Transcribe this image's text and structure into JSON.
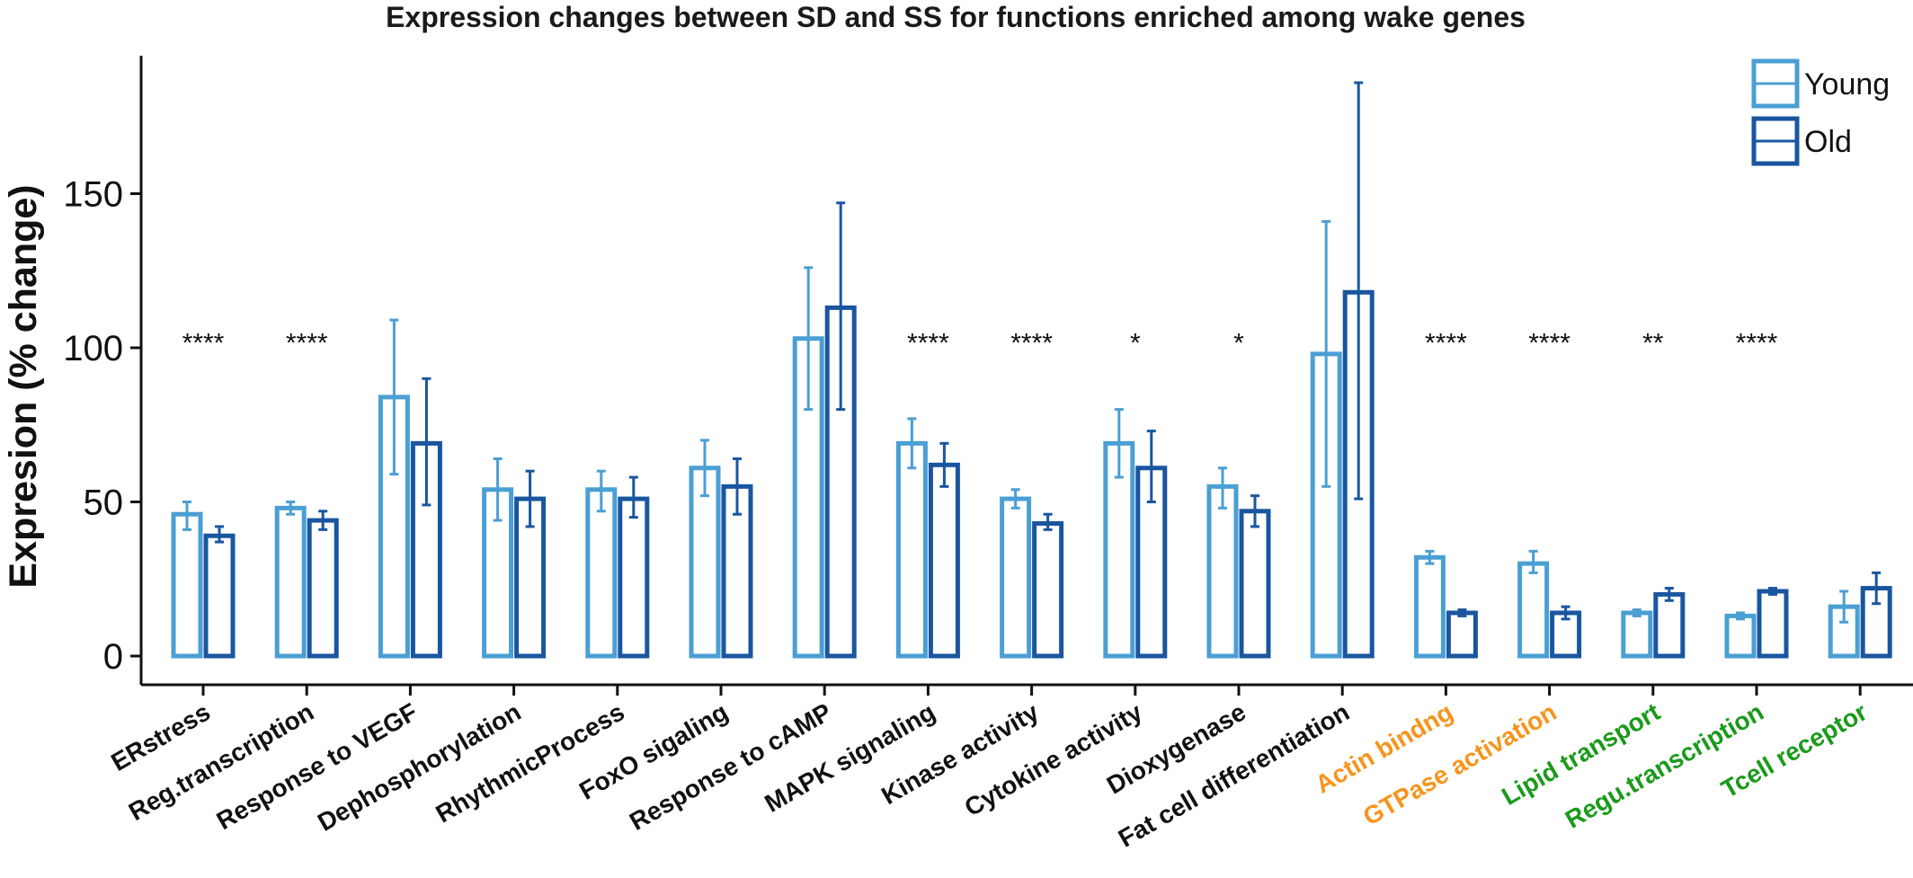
{
  "chart_data": {
    "type": "bar",
    "title": "Expression changes between SD and SS for functions enriched among wake genes",
    "xlabel": "",
    "ylabel": "Expresion (% change)",
    "ylim": [
      -10,
      193
    ],
    "yticks": [
      0,
      50,
      100,
      150
    ],
    "grid": false,
    "legend_position": "top-right",
    "categories": [
      "ERstress",
      "Reg.transcription",
      "Response to VEGF",
      "Dephosphorylation",
      "RhythmicProcess",
      "FoxO sigaling",
      "Response to cAMP",
      "MAPK signaling",
      "Kinase activity",
      "Cytokine activity",
      "Dioxygenase",
      "Fat cell differentiation",
      "Actin bindng",
      "GTPase activation",
      "Lipid transport",
      "Regu.transcription",
      "Tcell receptor"
    ],
    "category_colors": [
      "#111111",
      "#111111",
      "#111111",
      "#111111",
      "#111111",
      "#111111",
      "#111111",
      "#111111",
      "#111111",
      "#111111",
      "#111111",
      "#111111",
      "#f7941d",
      "#f7941d",
      "#1a9a1a",
      "#1a9a1a",
      "#1a9a1a"
    ],
    "significance": [
      "****",
      "****",
      "",
      "",
      "",
      "",
      "",
      "****",
      "****",
      "*",
      "*",
      "",
      "****",
      "****",
      "**",
      "****",
      ""
    ],
    "significance_y": 101,
    "series": [
      {
        "name": "Young",
        "color": "#4a9fd3",
        "values": [
          46,
          48,
          84,
          54,
          54,
          61,
          103,
          69,
          51,
          69,
          55,
          98,
          32,
          30,
          14,
          13,
          16
        ],
        "err_low": [
          41,
          46,
          59,
          44,
          47,
          52,
          80,
          61,
          48,
          58,
          48,
          55,
          30,
          27,
          13,
          12,
          11
        ],
        "err_high": [
          50,
          50,
          109,
          64,
          60,
          70,
          126,
          77,
          54,
          80,
          61,
          141,
          34,
          34,
          15,
          14,
          21
        ]
      },
      {
        "name": "Old",
        "color": "#1a56a0",
        "values": [
          39,
          44,
          69,
          51,
          51,
          55,
          113,
          62,
          43,
          61,
          47,
          118,
          14,
          14,
          20,
          21,
          22
        ],
        "err_low": [
          37,
          41,
          49,
          42,
          45,
          46,
          80,
          55,
          41,
          50,
          42,
          51,
          13,
          12,
          18,
          20,
          17
        ],
        "err_high": [
          42,
          47,
          90,
          60,
          58,
          64,
          147,
          69,
          46,
          73,
          52,
          186,
          15,
          16,
          22,
          22,
          27
        ]
      }
    ]
  }
}
